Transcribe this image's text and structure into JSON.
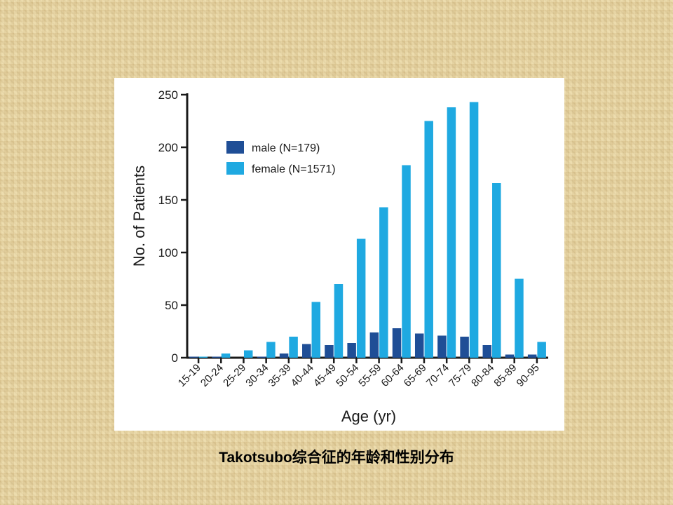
{
  "caption": "Takotsubo综合征的年龄和性别分布",
  "chart_data": {
    "type": "bar",
    "xlabel": "Age (yr)",
    "ylabel": "No. of Patients",
    "ylim": [
      0,
      250
    ],
    "yticks": [
      0,
      50,
      100,
      150,
      200,
      250
    ],
    "grid": false,
    "legend_position": "top-left",
    "categories": [
      "15-19",
      "20-24",
      "25-29",
      "30-34",
      "35-39",
      "40-44",
      "45-49",
      "50-54",
      "55-59",
      "60-64",
      "65-69",
      "70-74",
      "75-79",
      "80-84",
      "85-89",
      "90-95"
    ],
    "series": [
      {
        "name": "male (N=179)",
        "color": "#1f4e96",
        "values": [
          1,
          1,
          0,
          1,
          4,
          13,
          12,
          14,
          24,
          28,
          23,
          21,
          20,
          12,
          3,
          3
        ]
      },
      {
        "name": "female (N=1571)",
        "color": "#1fa9e1",
        "values": [
          1,
          4,
          7,
          15,
          20,
          53,
          70,
          113,
          143,
          183,
          225,
          238,
          243,
          166,
          75,
          15
        ]
      }
    ]
  }
}
